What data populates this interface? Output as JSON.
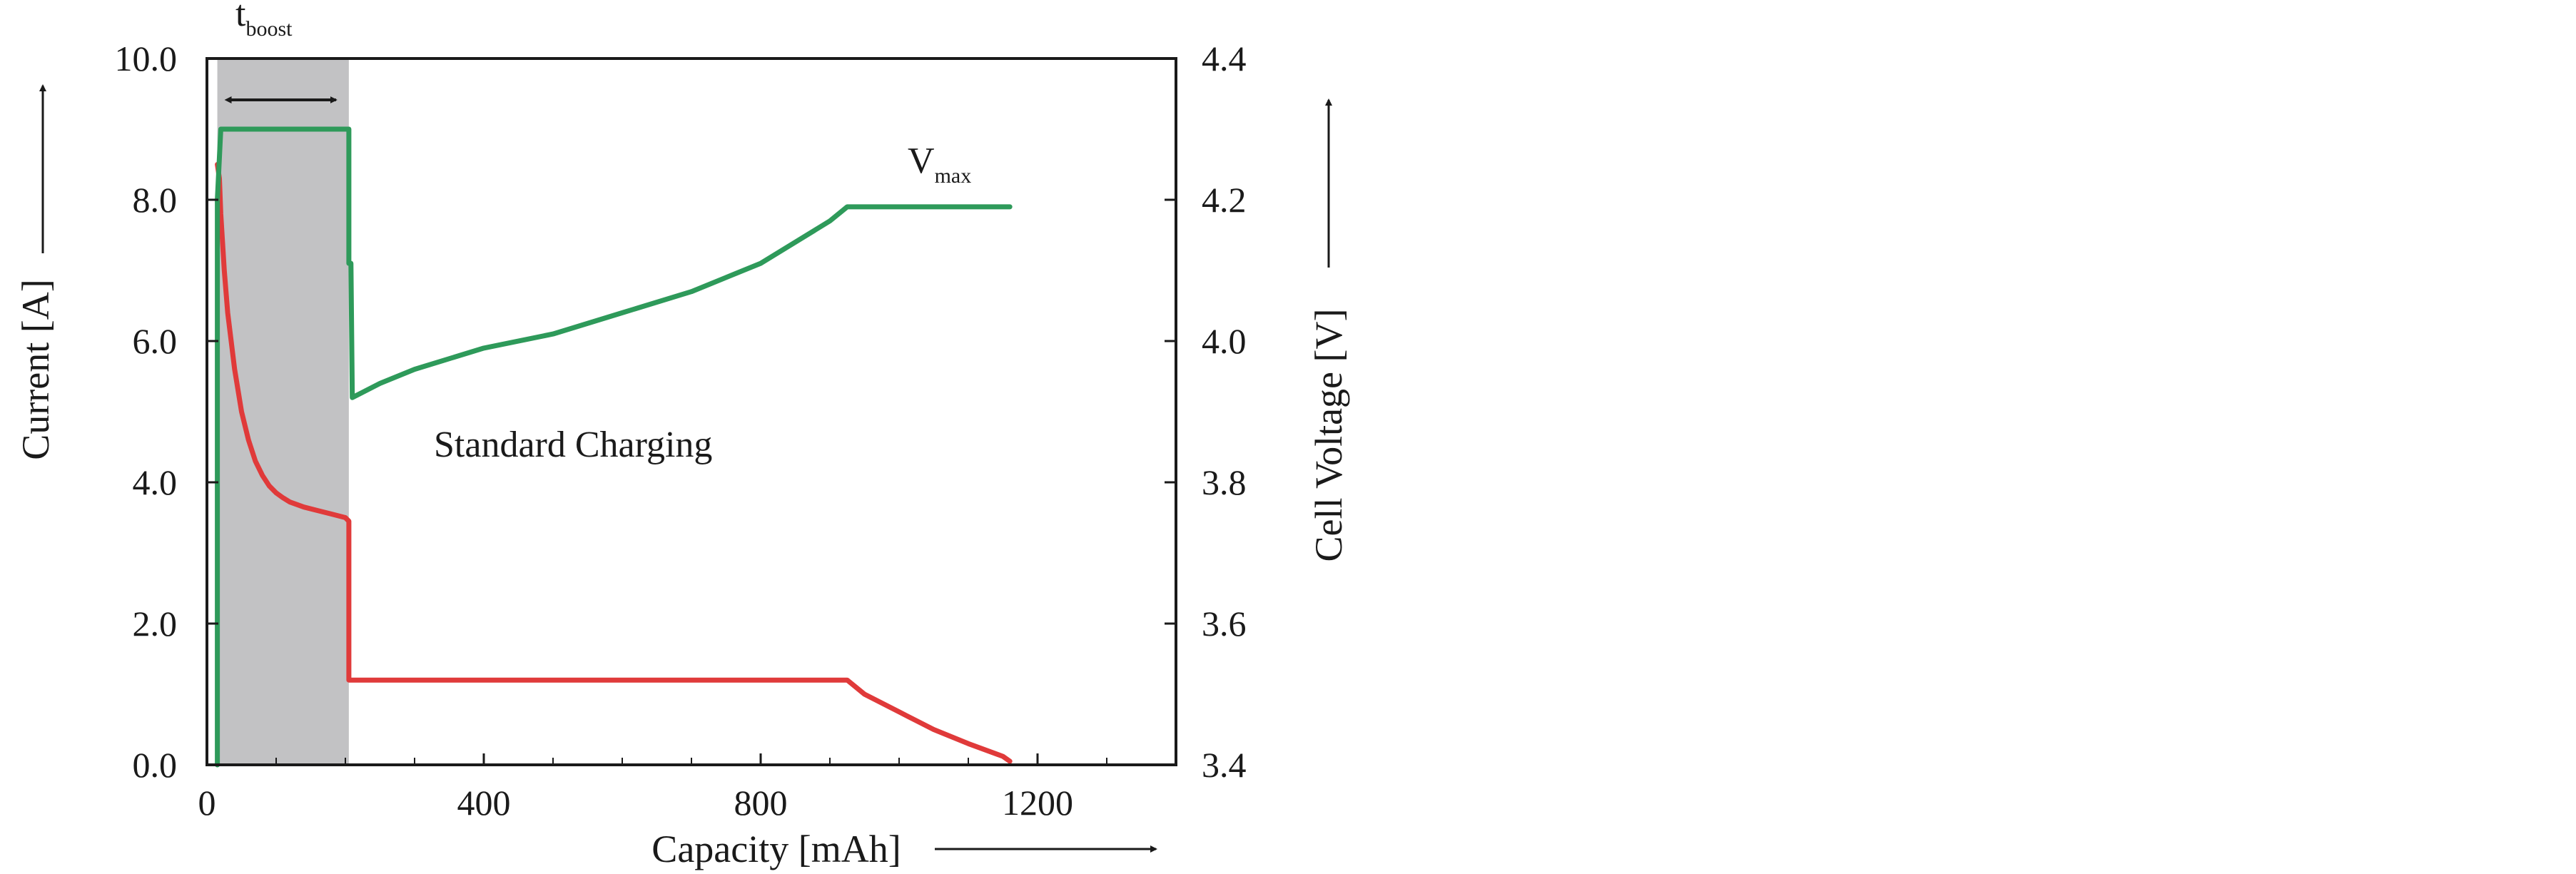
{
  "chart_data": {
    "type": "line",
    "title": "",
    "xlabel": "Capacity [mAh]",
    "ylabel_left": "Current [A]",
    "ylabel_right": "Cell Voltage [V]",
    "xlim": [
      0,
      1400
    ],
    "ylim_left": [
      0,
      10
    ],
    "ylim_right": [
      3.4,
      4.4
    ],
    "x_ticks": [
      0,
      400,
      800,
      1200
    ],
    "x_tick_labels": [
      "0",
      "400",
      "800",
      "1200"
    ],
    "y_left_ticks": [
      0,
      2,
      4,
      6,
      8,
      10
    ],
    "y_left_tick_labels": [
      "0.0",
      "2.0",
      "4.0",
      "6.0",
      "8.0",
      "10.0"
    ],
    "y_right_ticks": [
      3.4,
      3.6,
      3.8,
      4.0,
      4.2,
      4.4
    ],
    "y_right_tick_labels": [
      "3.4",
      "3.6",
      "3.8",
      "4.0",
      "4.2",
      "4.4"
    ],
    "grid": false,
    "boost_region": [
      15,
      205
    ],
    "series": [
      {
        "axis": "left",
        "color": "#e03a3a",
        "x": [
          15,
          18,
          20,
          25,
          30,
          40,
          50,
          60,
          70,
          80,
          90,
          100,
          110,
          120,
          140,
          160,
          180,
          200,
          205,
          205,
          210,
          250,
          300,
          400,
          500,
          600,
          700,
          800,
          900,
          925,
          950,
          1000,
          1050,
          1100,
          1150,
          1160
        ],
        "y": [
          8.5,
          8.3,
          7.8,
          7.0,
          6.4,
          5.6,
          5.0,
          4.6,
          4.3,
          4.1,
          3.95,
          3.85,
          3.78,
          3.72,
          3.65,
          3.6,
          3.55,
          3.5,
          3.45,
          1.2,
          1.2,
          1.2,
          1.2,
          1.2,
          1.2,
          1.2,
          1.2,
          1.2,
          1.2,
          1.2,
          1.0,
          0.75,
          0.5,
          0.3,
          0.12,
          0.05
        ]
      },
      {
        "axis": "right",
        "color": "#2e9a5a",
        "x": [
          15,
          15,
          20,
          100,
          200,
          205,
          205,
          208,
          210,
          250,
          300,
          400,
          500,
          600,
          700,
          800,
          900,
          925,
          950,
          1000,
          1100,
          1160
        ],
        "y": [
          3.4,
          4.2,
          4.3,
          4.3,
          4.3,
          4.3,
          4.11,
          4.11,
          3.92,
          3.94,
          3.96,
          3.99,
          4.01,
          4.04,
          4.07,
          4.11,
          4.17,
          4.19,
          4.19,
          4.19,
          4.19,
          4.19
        ]
      }
    ],
    "annotations": {
      "standard": "Standard Charging",
      "tboost_main": "t",
      "tboost_sub": "boost",
      "vmax_main": "V",
      "vmax_sub": "max"
    }
  }
}
